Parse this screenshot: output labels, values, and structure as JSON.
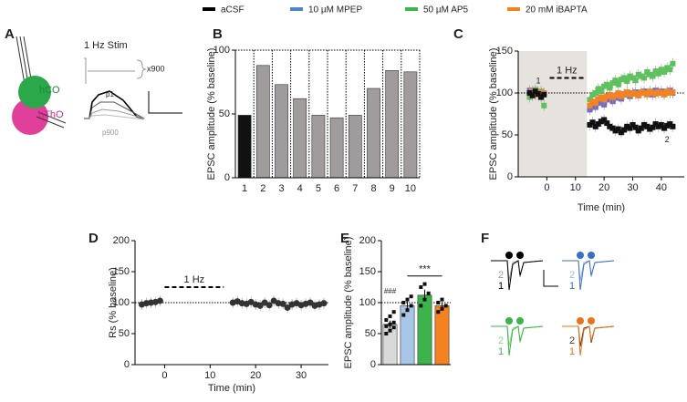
{
  "legend": [
    {
      "name": "aCSF",
      "color": "#000000"
    },
    {
      "name": "10 µM MPEP",
      "color": "#4a86c8"
    },
    {
      "name": "50 µM AP5",
      "color": "#3cb44b"
    },
    {
      "name": "20 mM iBAPTA",
      "color": "#f58220"
    }
  ],
  "panel_a": {
    "panel": "A",
    "stim": "1 Hz Stim",
    "count": "x900",
    "region1": "hCO",
    "region2": "hThO",
    "first": "p1",
    "last": "p900"
  },
  "panel_f": {
    "panel": "F",
    "groups": [
      {
        "colors": [
          "#000000",
          "#999999"
        ],
        "labels": [
          "1",
          "2"
        ]
      },
      {
        "colors": [
          "#3a6fc4",
          "#9bb7e0"
        ],
        "labels": [
          "1",
          "2"
        ]
      },
      {
        "colors": [
          "#3cb44b",
          "#8fd68f"
        ],
        "labels": [
          "1",
          "2"
        ]
      },
      {
        "colors": [
          "#e8731a",
          "#5a3010"
        ],
        "labels": [
          "1",
          "2"
        ]
      }
    ]
  },
  "chart_data": [
    {
      "type": "bar",
      "panel": "B",
      "ylabel": "EPSC amplitude (% baseline)",
      "categories": [
        "1",
        "2",
        "3",
        "4",
        "5",
        "6",
        "7",
        "8",
        "9",
        "10"
      ],
      "values": [
        49,
        88,
        73,
        62,
        49,
        47,
        49,
        70,
        84,
        83
      ],
      "colors": [
        "#111111",
        "#a09c9c",
        "#a09c9c",
        "#a09c9c",
        "#a09c9c",
        "#a09c9c",
        "#a09c9c",
        "#a09c9c",
        "#a09c9c",
        "#a09c9c"
      ],
      "ylim": [
        0,
        100
      ],
      "yticks": [
        0,
        50,
        100
      ],
      "refline": 100
    },
    {
      "type": "scatter",
      "panel": "C",
      "ylabel": "EPSC amplitude (% baseline)",
      "xlabel": "Time (min)",
      "marker": "square",
      "x": [
        -6,
        -5,
        -4,
        -3,
        -2,
        -1,
        15,
        16,
        17,
        18,
        19,
        20,
        21,
        22,
        23,
        24,
        25,
        26,
        27,
        28,
        29,
        30,
        31,
        32,
        33,
        34,
        35,
        36,
        37,
        38,
        39,
        40,
        41,
        42,
        43,
        44
      ],
      "series": [
        {
          "name": "50 µM AP5",
          "color": "#5cc35c",
          "values": [
            95,
            100,
            104,
            98,
            102,
            85,
            92,
            98,
            100,
            105,
            102,
            108,
            110,
            106,
            112,
            115,
            110,
            116,
            118,
            114,
            120,
            118,
            115,
            122,
            120,
            118,
            125,
            122,
            120,
            126,
            123,
            128,
            125,
            130,
            128,
            135
          ]
        },
        {
          "name": "10 µM MPEP",
          "color": "#7468c8",
          "values": [
            103,
            100,
            98,
            101,
            97,
            99,
            80,
            85,
            83,
            88,
            90,
            86,
            92,
            95,
            90,
            94,
            97,
            93,
            98,
            100,
            96,
            99,
            101,
            97,
            100,
            102,
            99,
            101,
            98,
            103,
            100,
            102,
            99,
            101,
            103,
            100
          ]
        },
        {
          "name": "20 mM iBAPTA",
          "color": "#f58220",
          "values": [
            100,
            102,
            98,
            101,
            99,
            100,
            85,
            90,
            88,
            93,
            95,
            92,
            96,
            98,
            95,
            97,
            100,
            96,
            99,
            101,
            98,
            100,
            99,
            97,
            101,
            100,
            98,
            102,
            100,
            99,
            101,
            100,
            98,
            102,
            100,
            101
          ]
        },
        {
          "name": "aCSF",
          "color": "#111111",
          "values": [
            100,
            97,
            102,
            99,
            95,
            98,
            62,
            65,
            60,
            63,
            66,
            68,
            64,
            60,
            58,
            55,
            57,
            53,
            56,
            60,
            58,
            62,
            59,
            55,
            58,
            62,
            60,
            57,
            59,
            63,
            60,
            62,
            58,
            61,
            63,
            60
          ]
        }
      ],
      "xlim": [
        -10,
        48
      ],
      "xticks": [
        0,
        10,
        20,
        30,
        40
      ],
      "ylim": [
        0,
        150
      ],
      "yticks": [
        0,
        50,
        100,
        150
      ],
      "refline": 100,
      "shade_x": [
        -10,
        14
      ],
      "stim": {
        "label": "1 Hz",
        "x": [
          1,
          13
        ],
        "y": 118
      },
      "annotations": [
        {
          "text": "1",
          "x": -3,
          "y": 114
        },
        {
          "text": "2",
          "x": 42,
          "y": 44
        }
      ]
    },
    {
      "type": "scatter",
      "panel": "D",
      "ylabel": "Rs (% baseline)",
      "xlabel": "Time (min)",
      "marker": "circle",
      "x": [
        -5,
        -4,
        -3,
        -2,
        -1,
        15,
        16,
        17,
        18,
        19,
        20,
        21,
        22,
        23,
        24,
        25,
        26,
        27,
        28,
        29,
        30,
        31,
        32,
        33,
        34,
        35
      ],
      "series": [
        {
          "name": "aCSF",
          "color": "#333333",
          "values": [
            97,
            99,
            100,
            101,
            103,
            100,
            102,
            99,
            98,
            101,
            97,
            95,
            100,
            96,
            103,
            99,
            98,
            92,
            97,
            99,
            96,
            98,
            100,
            95,
            97,
            99
          ]
        }
      ],
      "xlim": [
        -6.5,
        36
      ],
      "xticks": [
        0,
        10,
        20,
        30
      ],
      "ylim": [
        0,
        200
      ],
      "yticks": [
        0,
        50,
        100,
        150,
        200
      ],
      "refline": 100,
      "stim": {
        "label": "1 Hz",
        "x": [
          0,
          13
        ],
        "y": 125
      }
    },
    {
      "type": "barpoints",
      "panel": "E",
      "ylabel": "EPSC amplitude (% baseline)",
      "values": [
        65,
        95,
        112,
        95
      ],
      "errors": [
        6,
        7,
        9,
        6
      ],
      "colors": [
        "#d9d9d9",
        "#a9c6e8",
        "#3cb44b",
        "#f58220"
      ],
      "points": [
        [
          50,
          55,
          60,
          62,
          65,
          68,
          72,
          78,
          85
        ],
        [
          80,
          88,
          95,
          100,
          105,
          110
        ],
        [
          95,
          105,
          115,
          125,
          130
        ],
        [
          85,
          90,
          95,
          100,
          105
        ]
      ],
      "ylim": [
        0,
        200
      ],
      "yticks": [
        0,
        50,
        100,
        150,
        200
      ],
      "refline": 100,
      "marks": [
        {
          "text": "###",
          "y": 118
        }
      ],
      "sig": {
        "text": "***",
        "y": 143
      }
    }
  ]
}
